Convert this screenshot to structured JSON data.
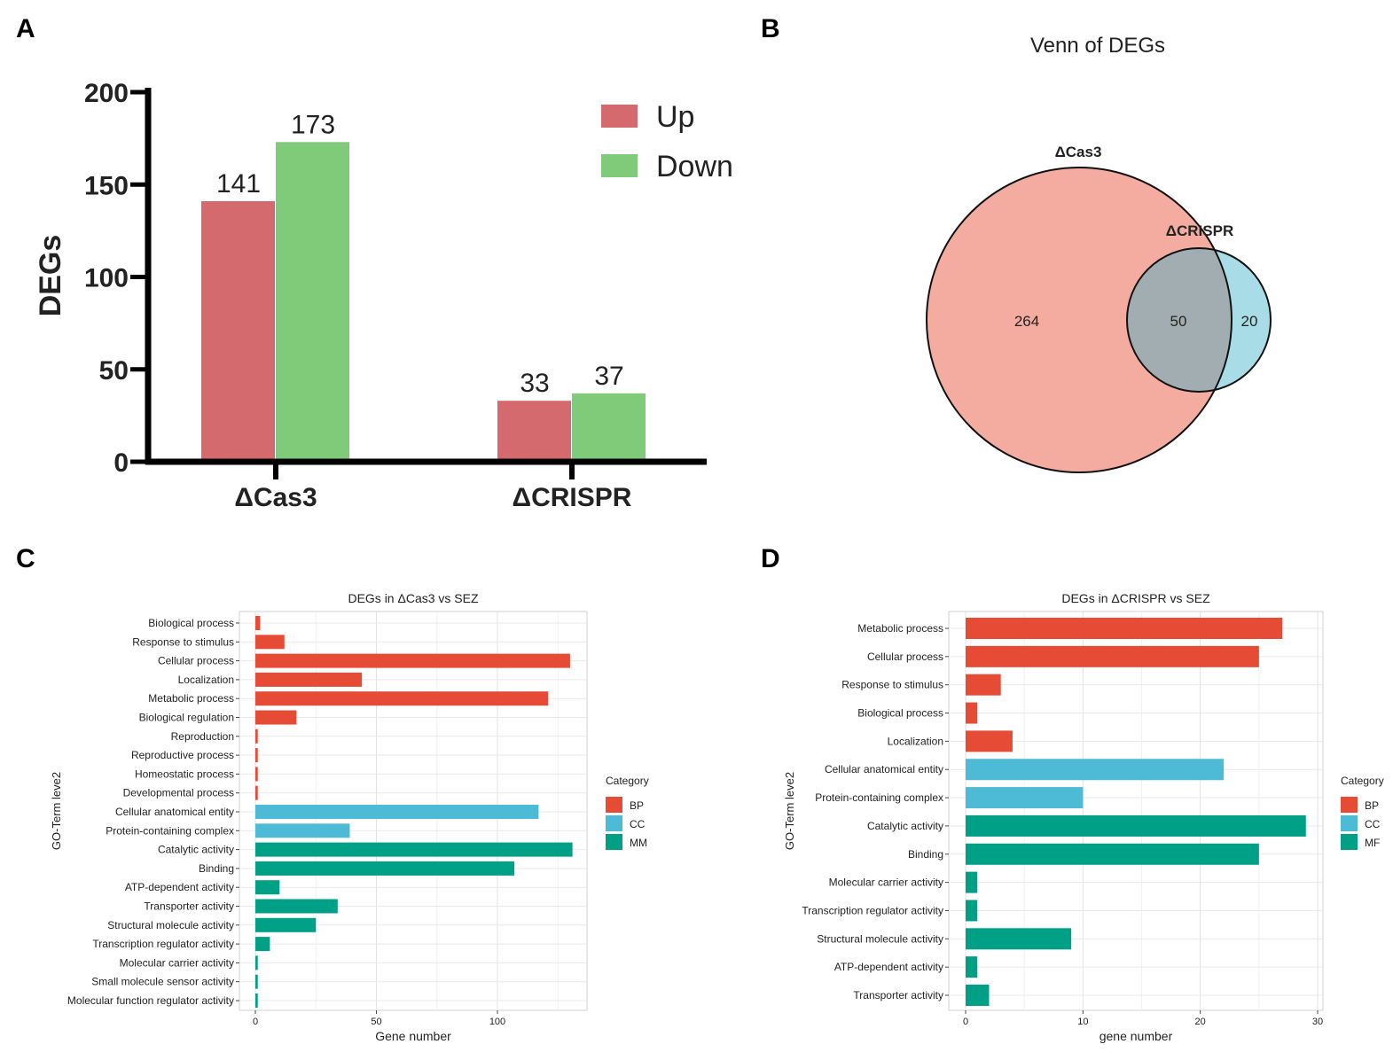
{
  "panels": {
    "a": "A",
    "b": "B",
    "c": "C",
    "d": "D"
  },
  "colors": {
    "up": "#d4696e",
    "down": "#80cb7a",
    "bp": "#e64b35",
    "cc": "#4dbbd5",
    "mf": "#00a087",
    "venn_a": "#f4aca0",
    "venn_b": "#a8dde8",
    "venn_overlap": "#a1adb0",
    "venn_label_a": "#d63b2b",
    "venn_label_b": "#4aaecc"
  },
  "chart_data": [
    {
      "type": "bar",
      "panel": "A",
      "title": "",
      "ylabel": "DEGs",
      "xlabel": "",
      "ylim": [
        0,
        200
      ],
      "yticks": [
        0,
        50,
        100,
        150,
        200
      ],
      "ytick_labels": [
        "0",
        "50",
        "100",
        "150",
        "200"
      ],
      "categories": [
        "ΔCas3",
        "ΔCRISPR"
      ],
      "series": [
        {
          "name": "Up",
          "values": [
            141,
            33
          ],
          "labels": [
            "141",
            "33"
          ]
        },
        {
          "name": "Down",
          "values": [
            173,
            37
          ],
          "labels": [
            "173",
            "37"
          ]
        }
      ],
      "legend": [
        "Up",
        "Down"
      ]
    },
    {
      "type": "venn",
      "panel": "B",
      "title": "Venn of DEGs",
      "sets": [
        "ΔCas3",
        "ΔCRISPR"
      ],
      "counts": {
        "only_a": 264,
        "overlap": 50,
        "only_b": 20
      },
      "count_labels": {
        "only_a": "264",
        "overlap": "50",
        "only_b": "20"
      }
    },
    {
      "type": "bar",
      "orientation": "horizontal",
      "panel": "C",
      "title": "DEGs in ΔCas3 vs SEZ",
      "xlabel": "Gene number",
      "ylabel": "GO-Term leve2",
      "xlim": [
        0,
        137
      ],
      "xticks": [
        0,
        50,
        100
      ],
      "xtick_labels": [
        "0",
        "50",
        "100"
      ],
      "legend_title": "Category",
      "legend": [
        {
          "label": "BP",
          "key": "bp"
        },
        {
          "label": "CC",
          "key": "cc"
        },
        {
          "label": "MM",
          "key": "mf"
        }
      ],
      "categories": [
        "Biological process",
        "Response to stimulus",
        "Cellular process",
        "Localization",
        "Metabolic process",
        "Biological regulation",
        "Reproduction",
        "Reproductive process",
        "Homeostatic process",
        "Developmental process",
        "Cellular anatomical entity",
        "Protein-containing complex",
        "Catalytic activity",
        "Binding",
        "ATP-dependent activity",
        "Transporter activity",
        "Structural molecule activity",
        "Transcription regulator activity",
        "Molecular carrier activity",
        "Small molecule sensor activity",
        "Molecular function regulator activity"
      ],
      "values": [
        2,
        12,
        130,
        44,
        121,
        17,
        1,
        1,
        1,
        1,
        117,
        39,
        131,
        107,
        10,
        34,
        25,
        6,
        1,
        1,
        1
      ],
      "groups": [
        "bp",
        "bp",
        "bp",
        "bp",
        "bp",
        "bp",
        "bp",
        "bp",
        "bp",
        "bp",
        "cc",
        "cc",
        "mf",
        "mf",
        "mf",
        "mf",
        "mf",
        "mf",
        "mf",
        "mf",
        "mf"
      ]
    },
    {
      "type": "bar",
      "orientation": "horizontal",
      "panel": "D",
      "title": "DEGs in  ΔCRISPR vs SEZ",
      "xlabel": "gene number",
      "ylabel": "GO-Term leve2",
      "xlim": [
        0,
        30
      ],
      "xticks": [
        0,
        10,
        20,
        30
      ],
      "xtick_labels": [
        "0",
        "10",
        "20",
        "30"
      ],
      "legend_title": "Category",
      "legend": [
        {
          "label": "BP",
          "key": "bp"
        },
        {
          "label": "CC",
          "key": "cc"
        },
        {
          "label": "MF",
          "key": "mf"
        }
      ],
      "categories": [
        "Metabolic process",
        "Cellular process",
        "Response to stimulus",
        "Biological process",
        "Localization",
        "Cellular anatomical entity",
        "Protein-containing complex",
        "Catalytic activity",
        "Binding",
        "Molecular carrier activity",
        "Transcription regulator activity",
        "Structural molecule activity",
        "ATP-dependent activity",
        "Transporter activity"
      ],
      "values": [
        27,
        25,
        3,
        1,
        4,
        22,
        10,
        29,
        25,
        1,
        1,
        9,
        1,
        2
      ],
      "groups": [
        "bp",
        "bp",
        "bp",
        "bp",
        "bp",
        "cc",
        "cc",
        "mf",
        "mf",
        "mf",
        "mf",
        "mf",
        "mf",
        "mf"
      ]
    }
  ]
}
